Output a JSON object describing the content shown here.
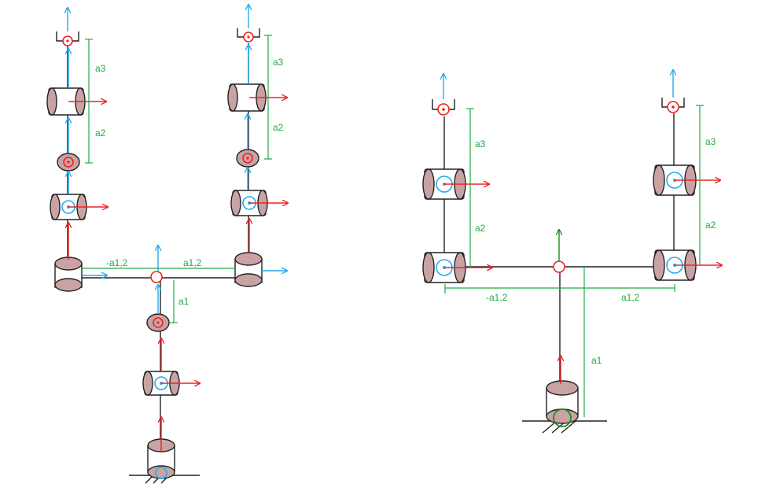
{
  "colors": {
    "link": "#222222",
    "dimension": "#22aa44",
    "x_axis": "#ee2222",
    "z_axis": "#22aaee",
    "joint_fill": "#c9a3a3",
    "base_frame": "#1a8a1a"
  },
  "left_diagram": {
    "labels": {
      "a1": "a1",
      "a1_neg": "-a1,2",
      "a1_pos": "a1,2",
      "a2_left": "a2",
      "a3_left": "a3",
      "a2_right": "a2",
      "a3_right": "a3"
    }
  },
  "right_diagram": {
    "labels": {
      "a1": "a1",
      "a1_neg": "-a1,2",
      "a1_pos": "a1,2",
      "a2_left": "a2",
      "a3_left": "a3",
      "a2_right": "a2",
      "a3_right": "a3"
    }
  }
}
